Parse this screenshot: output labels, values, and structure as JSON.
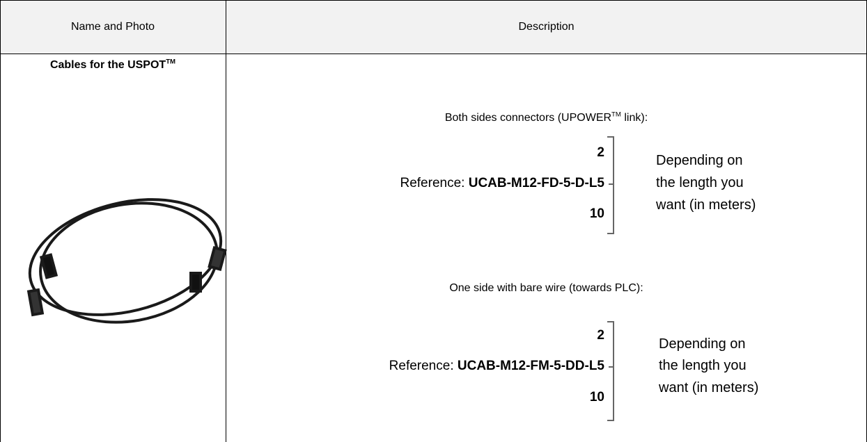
{
  "header": {
    "columns": [
      "Name and Photo",
      "Description"
    ]
  },
  "product": {
    "name": "Cables for the USPOT",
    "name_sup": "TM"
  },
  "options": [
    {
      "heading": "Both sides connectors (UPOWER",
      "heading_sup": "TM",
      "heading_end": " link):",
      "reference_label": "Reference: ",
      "reference": "UCAB-M12-FD-5-D-L5",
      "length_min": "2",
      "length_max": "10",
      "note_lines": [
        "Depending on",
        "the length you",
        "want (in meters)"
      ]
    },
    {
      "heading": "One side with bare wire (towards PLC):",
      "reference_label": "Reference: ",
      "reference": "UCAB-M12-FM-5-DD-L5",
      "length_min": "2",
      "length_max": "10",
      "note_lines": [
        "Depending on",
        "the length you",
        "want (in meters)"
      ]
    }
  ]
}
